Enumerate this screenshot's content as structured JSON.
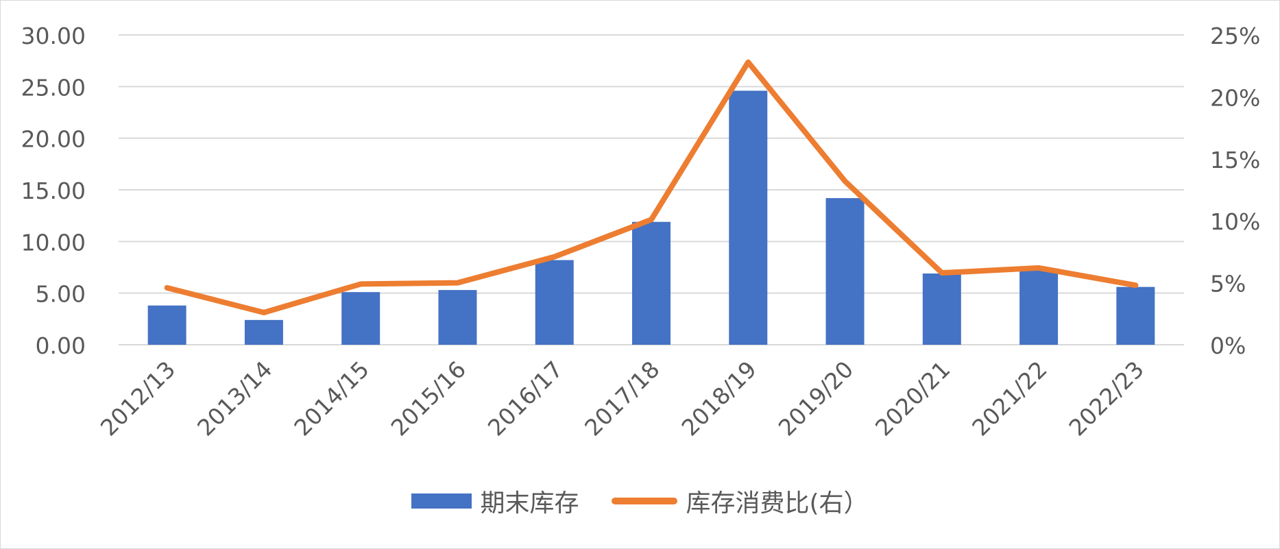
{
  "colors": {
    "bar": "#4472C4",
    "line": "#ED7D31",
    "grid": "#d9d9d9",
    "text": "#595959"
  },
  "chart_data": {
    "type": "bar",
    "categories": [
      "2012/13",
      "2013/14",
      "2014/15",
      "2015/16",
      "2016/17",
      "2017/18",
      "2018/19",
      "2019/20",
      "2020/21",
      "2021/22",
      "2022/23"
    ],
    "series": [
      {
        "name": "期末库存",
        "type": "bar",
        "axis": "left",
        "values": [
          3.8,
          2.4,
          5.1,
          5.3,
          8.2,
          11.9,
          24.6,
          14.2,
          6.9,
          7.4,
          5.6
        ]
      },
      {
        "name": "库存消费比(右）",
        "type": "line",
        "axis": "right",
        "values": [
          4.6,
          2.6,
          4.9,
          5.0,
          7.1,
          10.1,
          22.8,
          13.2,
          5.8,
          6.2,
          4.8
        ]
      }
    ],
    "y_left": {
      "min": 0,
      "max": 30,
      "ticks": [
        "0.00",
        "5.00",
        "10.00",
        "15.00",
        "20.00",
        "25.00",
        "30.00"
      ]
    },
    "y_right": {
      "min": 0,
      "max": 25,
      "ticks": [
        "0%",
        "5%",
        "10%",
        "15%",
        "20%",
        "25%"
      ]
    },
    "grid": true,
    "legend_position": "bottom"
  },
  "legend": [
    {
      "label": "期末库存"
    },
    {
      "label": "库存消费比(右）"
    }
  ]
}
